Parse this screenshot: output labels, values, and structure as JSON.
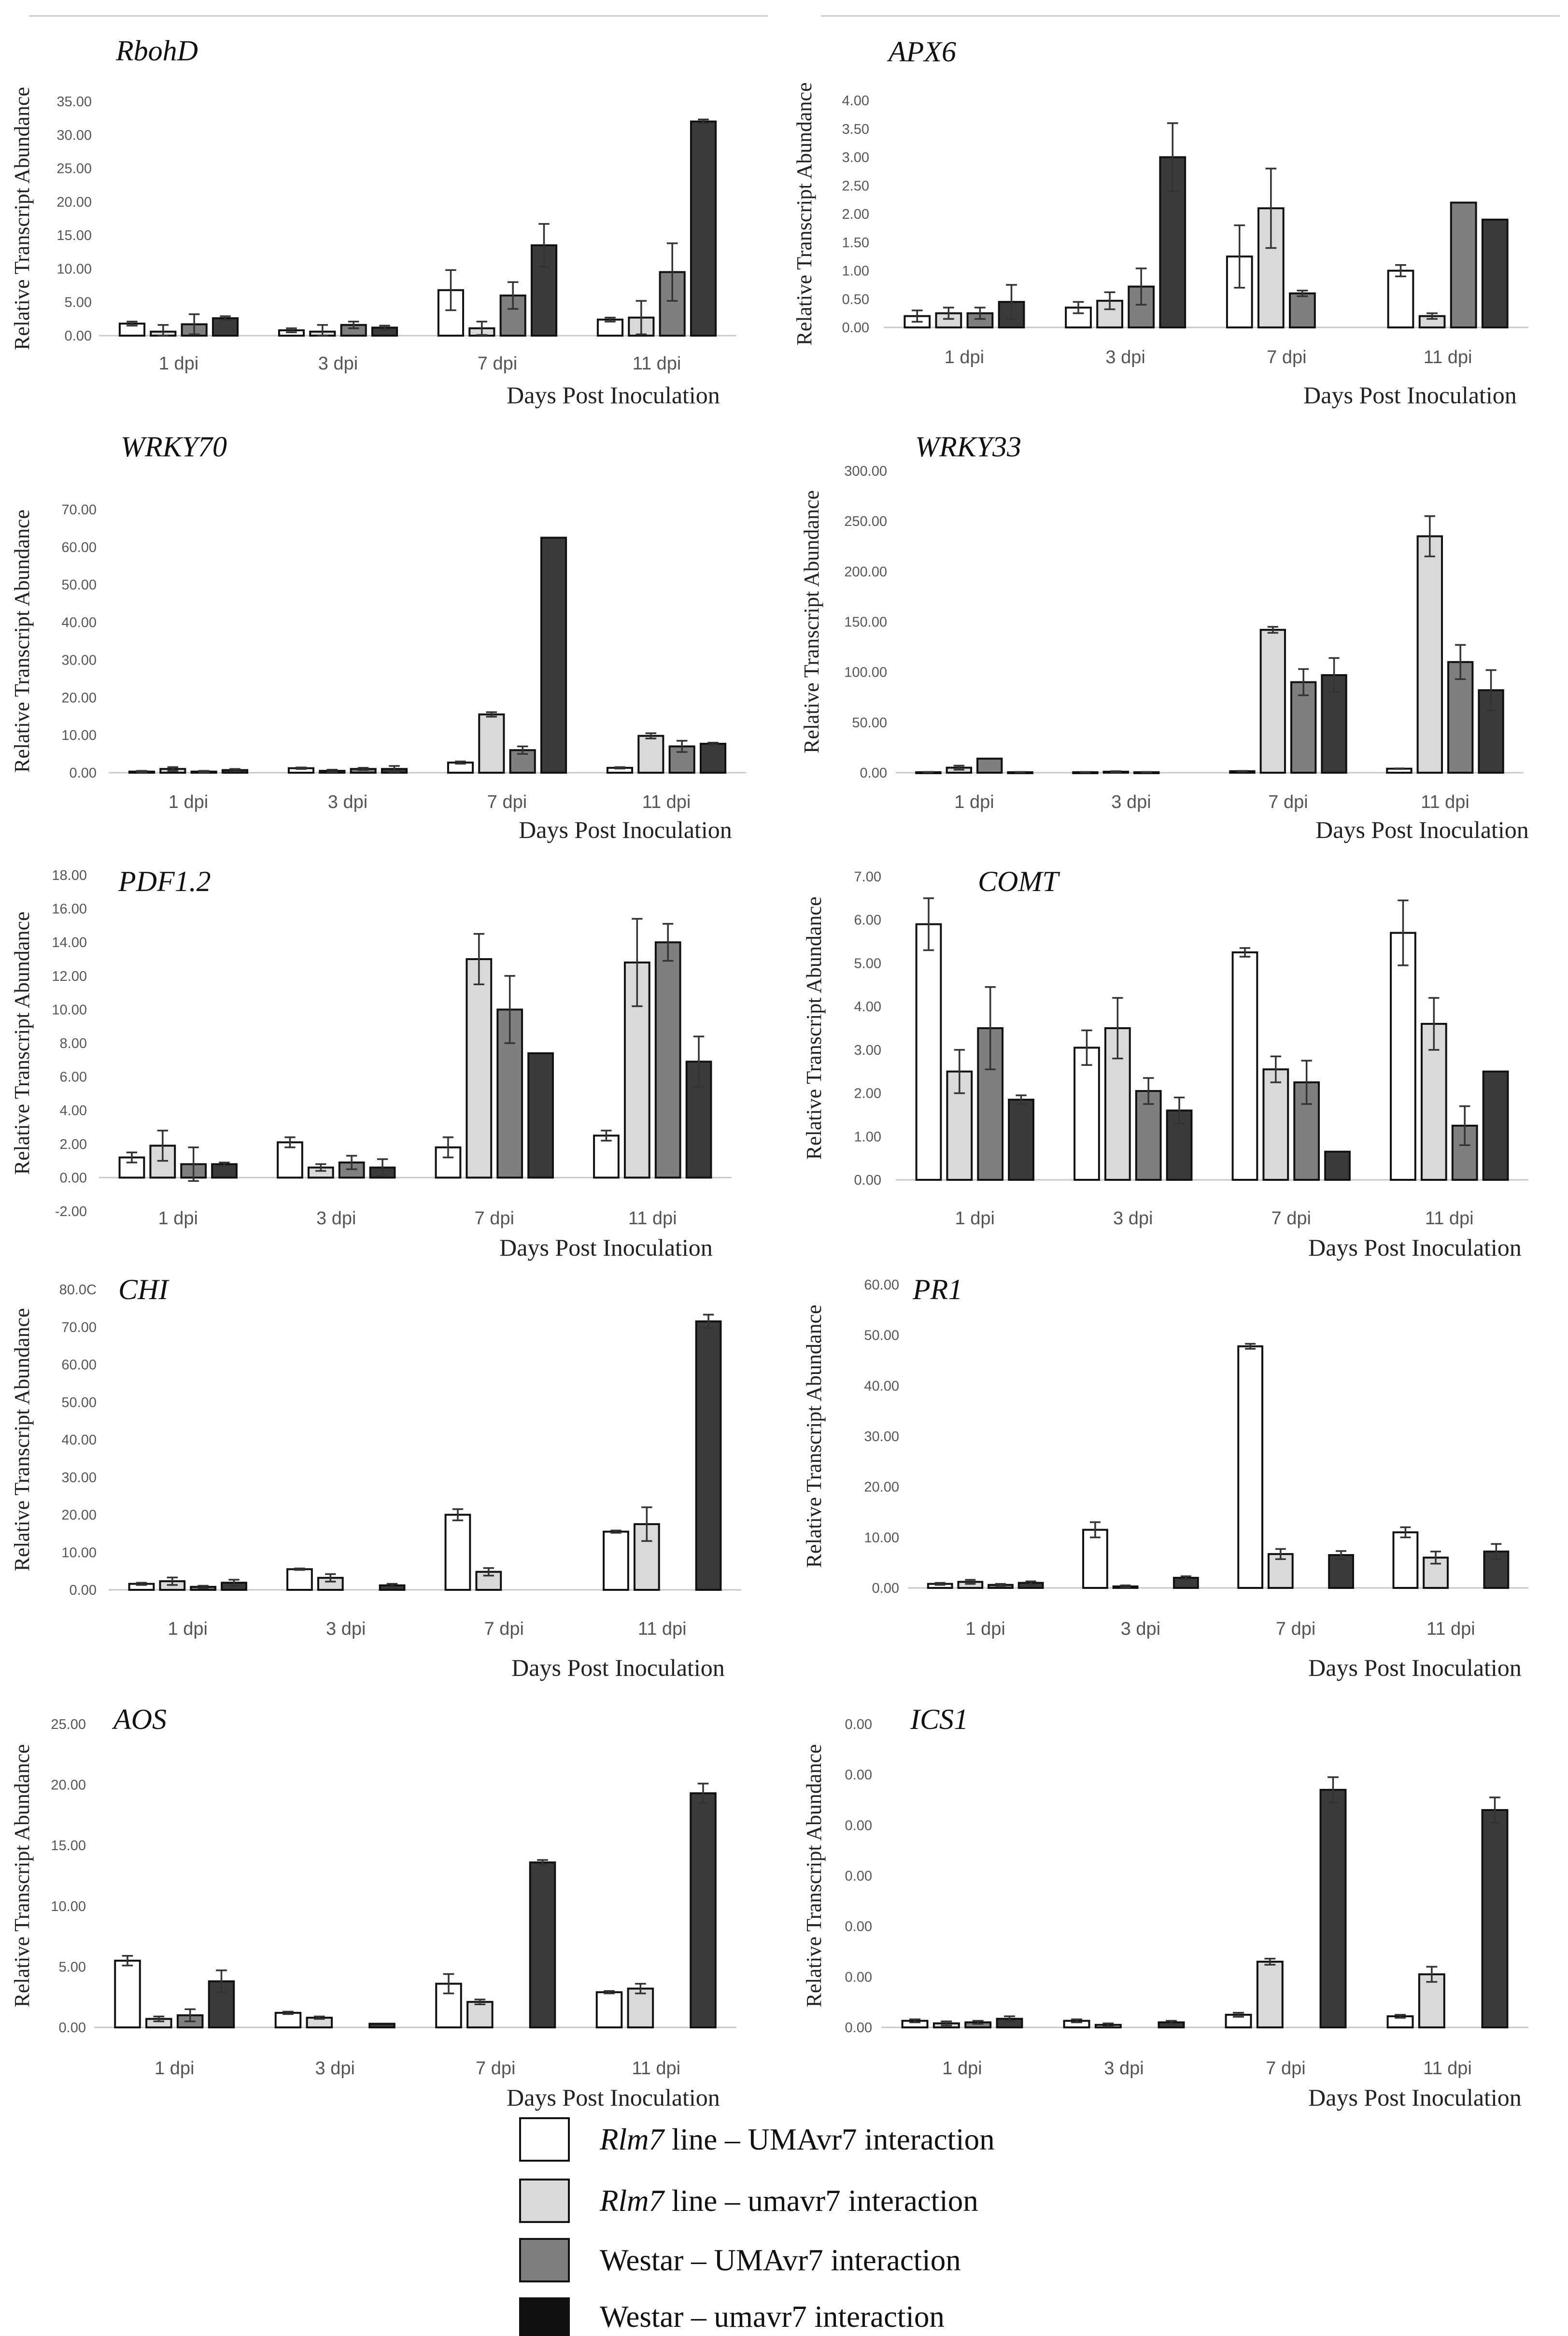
{
  "chart_data": [
    {
      "type": "bar",
      "title": "RbohD",
      "ylabel": "Relative Transcript Abundance",
      "xlabel": "Days Post Inoculation",
      "categories": [
        "1 dpi",
        "3 dpi",
        "7 dpi",
        "11 dpi"
      ],
      "yticks": [
        "0.00",
        "5.00",
        "10.00",
        "15.00",
        "20.00",
        "25.00",
        "30.00",
        "35.00"
      ],
      "ylim": [
        0,
        35
      ],
      "series": [
        {
          "name": "Rlm7 line – UMAvr7 interaction",
          "values": [
            1.8,
            0.8,
            6.8,
            2.4
          ],
          "errors": [
            0.3,
            0.3,
            3.0,
            0.3
          ]
        },
        {
          "name": "Rlm7 line – umavr7 interaction",
          "values": [
            0.6,
            0.6,
            1.1,
            2.7
          ],
          "errors": [
            1.0,
            1.0,
            1.0,
            2.5
          ]
        },
        {
          "name": "Westar – UMAvr7 interaction",
          "values": [
            1.7,
            1.6,
            6.0,
            9.5
          ],
          "errors": [
            1.5,
            0.5,
            2.0,
            4.3
          ]
        },
        {
          "name": "Westar – umavr7 interaction",
          "values": [
            2.6,
            1.2,
            13.5,
            32.0
          ],
          "errors": [
            0.3,
            0.3,
            3.2,
            0.3
          ]
        }
      ]
    },
    {
      "type": "bar",
      "title": "APX6",
      "ylabel": "Relative Transcript Abundance",
      "xlabel": "Days Post Inoculation",
      "categories": [
        "1 dpi",
        "3 dpi",
        "7 dpi",
        "11 dpi"
      ],
      "yticks": [
        "0.00",
        "0.50",
        "1.00",
        "1.50",
        "2.00",
        "2.50",
        "3.00",
        "3.50",
        "4.00"
      ],
      "ylim": [
        0,
        4
      ],
      "series": [
        {
          "name": "Rlm7 line – UMAvr7 interaction",
          "values": [
            0.2,
            0.35,
            1.25,
            1.0
          ],
          "errors": [
            0.1,
            0.1,
            0.55,
            0.1
          ]
        },
        {
          "name": "Rlm7 line – umavr7 interaction",
          "values": [
            0.25,
            0.47,
            2.1,
            0.2
          ],
          "errors": [
            0.1,
            0.15,
            0.7,
            0.05
          ]
        },
        {
          "name": "Westar – UMAvr7 interaction",
          "values": [
            0.25,
            0.72,
            0.6,
            2.2
          ],
          "errors": [
            0.1,
            0.32,
            0.05,
            0
          ]
        },
        {
          "name": "Westar – umavr7 interaction",
          "values": [
            0.45,
            3.0,
            0,
            1.9
          ],
          "errors": [
            0.3,
            0.6,
            0,
            0
          ]
        }
      ]
    },
    {
      "type": "bar",
      "title": "WRKY70",
      "ylabel": "Relative Transcript Abundance",
      "xlabel": "Days Post Inoculation",
      "categories": [
        "1 dpi",
        "3 dpi",
        "7 dpi",
        "11 dpi"
      ],
      "yticks": [
        "0.00",
        "10.00",
        "20.00",
        "30.00",
        "40.00",
        "50.00",
        "60.00",
        "70.00"
      ],
      "ylim": [
        0,
        70
      ],
      "series": [
        {
          "name": "Rlm7 line – UMAvr7 interaction",
          "values": [
            0.3,
            1.2,
            2.7,
            1.3
          ],
          "errors": [
            0.2,
            0.2,
            0.3,
            0.2
          ]
        },
        {
          "name": "Rlm7 line – umavr7 interaction",
          "values": [
            1.0,
            0.5,
            15.5,
            9.8
          ],
          "errors": [
            0.5,
            0.3,
            0.6,
            0.7
          ]
        },
        {
          "name": "Westar – UMAvr7 interaction",
          "values": [
            0.3,
            1.0,
            6.0,
            7.0
          ],
          "errors": [
            0.2,
            0.3,
            1.0,
            1.5
          ]
        },
        {
          "name": "Westar – umavr7 interaction",
          "values": [
            0.7,
            1.0,
            62.5,
            7.7
          ],
          "errors": [
            0.3,
            0.8,
            0,
            0.3
          ]
        }
      ]
    },
    {
      "type": "bar",
      "title": "WRKY33",
      "ylabel": "Relative Transcript Abundance",
      "xlabel": "Days Post Inoculation",
      "categories": [
        "1 dpi",
        "3 dpi",
        "7 dpi",
        "11 dpi"
      ],
      "yticks": [
        "0.00",
        "50.00",
        "100.00",
        "150.00",
        "200.00",
        "250.00",
        "300.00"
      ],
      "ylim": [
        0,
        300
      ],
      "series": [
        {
          "name": "Rlm7 line – UMAvr7 interaction",
          "values": [
            0.5,
            0.5,
            1.5,
            4.0
          ],
          "errors": [
            0.3,
            0.3,
            0.3,
            0.3
          ]
        },
        {
          "name": "Rlm7 line – umavr7 interaction",
          "values": [
            5.0,
            1.0,
            142.0,
            235.0
          ],
          "errors": [
            2.0,
            0.5,
            3.0,
            20.0
          ]
        },
        {
          "name": "Westar – UMAvr7 interaction",
          "values": [
            14.0,
            0.5,
            90.0,
            110.0
          ],
          "errors": [
            0,
            0.3,
            13.0,
            17.0
          ]
        },
        {
          "name": "Westar – umavr7 interaction",
          "values": [
            0.5,
            0,
            97.0,
            82.0
          ],
          "errors": [
            0.3,
            0,
            17.0,
            20.0
          ]
        }
      ]
    },
    {
      "type": "bar",
      "title": "PDF1.2",
      "ylabel": "Relative Transcript Abundance",
      "xlabel": "Days Post Inoculation",
      "categories": [
        "1 dpi",
        "3 dpi",
        "7 dpi",
        "11 dpi"
      ],
      "yticks": [
        "-2.00",
        "0.00",
        "2.00",
        "4.00",
        "6.00",
        "8.00",
        "10.00",
        "12.00",
        "14.00",
        "16.00",
        "18.00"
      ],
      "ylim": [
        -2,
        18
      ],
      "series": [
        {
          "name": "Rlm7 line – UMAvr7 interaction",
          "values": [
            1.2,
            2.1,
            1.8,
            2.5
          ],
          "errors": [
            0.3,
            0.3,
            0.6,
            0.3
          ]
        },
        {
          "name": "Rlm7 line – umavr7 interaction",
          "values": [
            1.9,
            0.6,
            13.0,
            12.8
          ],
          "errors": [
            0.9,
            0.2,
            1.5,
            2.6
          ]
        },
        {
          "name": "Westar – UMAvr7 interaction",
          "values": [
            0.8,
            0.9,
            10.0,
            14.0
          ],
          "errors": [
            1.0,
            0.4,
            2.0,
            1.1
          ]
        },
        {
          "name": "Westar – umavr7 interaction",
          "values": [
            0.8,
            0.6,
            7.4,
            6.9
          ],
          "errors": [
            0.1,
            0.5,
            0,
            1.5
          ]
        }
      ]
    },
    {
      "type": "bar",
      "title": "COMT",
      "ylabel": "Relative Transcript Abundance",
      "xlabel": "Days Post Inoculation",
      "categories": [
        "1 dpi",
        "3 dpi",
        "7 dpi",
        "11 dpi"
      ],
      "yticks": [
        "0.00",
        "1.00",
        "2.00",
        "3.00",
        "4.00",
        "5.00",
        "6.00",
        "7.00"
      ],
      "ylim": [
        0,
        7
      ],
      "series": [
        {
          "name": "Rlm7 line – UMAvr7 interaction",
          "values": [
            5.9,
            3.05,
            5.25,
            5.7
          ],
          "errors": [
            0.6,
            0.4,
            0.1,
            0.75
          ]
        },
        {
          "name": "Rlm7 line – umavr7 interaction",
          "values": [
            2.5,
            3.5,
            2.55,
            3.6
          ],
          "errors": [
            0.5,
            0.7,
            0.3,
            0.6
          ]
        },
        {
          "name": "Westar – UMAvr7 interaction",
          "values": [
            3.5,
            2.05,
            2.25,
            1.25
          ],
          "errors": [
            0.95,
            0.3,
            0.5,
            0.45
          ]
        },
        {
          "name": "Westar – umavr7 interaction",
          "values": [
            1.85,
            1.6,
            0.65,
            2.5
          ],
          "errors": [
            0.1,
            0.3,
            0,
            0
          ]
        }
      ]
    },
    {
      "type": "bar",
      "title": "CHI",
      "ylabel": "Relative Transcript Abundance",
      "xlabel": "Days Post Inoculation",
      "categories": [
        "1 dpi",
        "3 dpi",
        "7 dpi",
        "11 dpi"
      ],
      "yticks": [
        "0.00",
        "10.00",
        "20.00",
        "30.00",
        "40.00",
        "50.00",
        "60.00",
        "70.00",
        "80.0C"
      ],
      "ylim": [
        0,
        80
      ],
      "series": [
        {
          "name": "Rlm7 line – UMAvr7 interaction",
          "values": [
            1.6,
            5.5,
            20.0,
            15.5
          ],
          "errors": [
            0.3,
            0.2,
            1.5,
            0.3
          ]
        },
        {
          "name": "Rlm7 line – umavr7 interaction",
          "values": [
            2.3,
            3.2,
            4.8,
            17.5
          ],
          "errors": [
            1.0,
            1.0,
            1.0,
            4.5
          ]
        },
        {
          "name": "Westar – UMAvr7 interaction",
          "values": [
            0.8,
            0,
            0,
            0
          ],
          "errors": [
            0.3,
            0,
            0,
            0
          ]
        },
        {
          "name": "Westar – umavr7 interaction",
          "values": [
            1.9,
            1.2,
            0,
            71.5
          ],
          "errors": [
            0.8,
            0.4,
            0,
            1.8
          ]
        }
      ]
    },
    {
      "type": "bar",
      "title": "PR1",
      "ylabel": "Relative Transcript Abundance",
      "xlabel": "Days Post Inoculation",
      "categories": [
        "1 dpi",
        "3 dpi",
        "7 dpi",
        "11 dpi"
      ],
      "yticks": [
        "0.00",
        "10.00",
        "20.00",
        "30.00",
        "40.00",
        "50.00",
        "60.00"
      ],
      "ylim": [
        0,
        60
      ],
      "series": [
        {
          "name": "Rlm7 line – UMAvr7 interaction",
          "values": [
            0.8,
            11.5,
            47.8,
            11.0
          ],
          "errors": [
            0.2,
            1.5,
            0.5,
            1.0
          ]
        },
        {
          "name": "Rlm7 line – umavr7 interaction",
          "values": [
            1.2,
            0.3,
            6.7,
            6.0
          ],
          "errors": [
            0.4,
            0.2,
            1.0,
            1.2
          ]
        },
        {
          "name": "Westar – UMAvr7 interaction",
          "values": [
            0.6,
            0,
            0,
            0
          ],
          "errors": [
            0.2,
            0,
            0,
            0
          ]
        },
        {
          "name": "Westar – umavr7 interaction",
          "values": [
            1.0,
            2.0,
            6.5,
            7.2
          ],
          "errors": [
            0.3,
            0.3,
            0.8,
            1.5
          ]
        }
      ]
    },
    {
      "type": "bar",
      "title": "AOS",
      "ylabel": "Relative Transcript Abundance",
      "xlabel": "Days Post Inoculation",
      "categories": [
        "1 dpi",
        "3 dpi",
        "7 dpi",
        "11 dpi"
      ],
      "yticks": [
        "0.00",
        "5.00",
        "10.00",
        "15.00",
        "20.00",
        "25.00"
      ],
      "ylim": [
        0,
        25
      ],
      "series": [
        {
          "name": "Rlm7 line – UMAvr7 interaction",
          "values": [
            5.5,
            1.2,
            3.6,
            2.9
          ],
          "errors": [
            0.4,
            0.1,
            0.8,
            0.1
          ]
        },
        {
          "name": "Rlm7 line – umavr7 interaction",
          "values": [
            0.7,
            0.8,
            2.1,
            3.2
          ],
          "errors": [
            0.2,
            0.1,
            0.2,
            0.4
          ]
        },
        {
          "name": "Westar – UMAvr7 interaction",
          "values": [
            1.0,
            0,
            0,
            0
          ],
          "errors": [
            0.5,
            0,
            0,
            0
          ]
        },
        {
          "name": "Westar – umavr7 interaction",
          "values": [
            3.8,
            0.3,
            13.6,
            19.3
          ],
          "errors": [
            0.9,
            0,
            0.2,
            0.8
          ]
        }
      ]
    },
    {
      "type": "bar",
      "title": "ICS1",
      "ylabel": "Relative Transcript Abundance",
      "xlabel": "Days Post Inoculation",
      "categories": [
        "1 dpi",
        "3 dpi",
        "7 dpi",
        "11 dpi"
      ],
      "yticks": [
        "0.00",
        "0.00",
        "0.00",
        "0.00",
        "0.00",
        "0.00",
        "0.00"
      ],
      "ylim": [
        0,
        6
      ],
      "series": [
        {
          "name": "Rlm7 line – UMAvr7 interaction",
          "values": [
            0.13,
            0.13,
            0.25,
            0.22
          ],
          "errors": [
            0.03,
            0.03,
            0.04,
            0.03
          ]
        },
        {
          "name": "Rlm7 line – umavr7 interaction",
          "values": [
            0.08,
            0.05,
            1.3,
            1.05
          ],
          "errors": [
            0.04,
            0.03,
            0.06,
            0.15
          ]
        },
        {
          "name": "Westar – UMAvr7 interaction",
          "values": [
            0.1,
            0,
            0,
            0
          ],
          "errors": [
            0.03,
            0,
            0,
            0
          ]
        },
        {
          "name": "Westar – umavr7 interaction",
          "values": [
            0.17,
            0.1,
            4.7,
            4.3
          ],
          "errors": [
            0.05,
            0.03,
            0.25,
            0.25
          ]
        }
      ]
    }
  ],
  "legend": [
    {
      "italic": "Rlm7",
      "text": " line – UMAvr7 interaction",
      "color": "#ffffff"
    },
    {
      "italic": "Rlm7",
      "text": " line – umavr7 interaction",
      "color": "#d9d9d9"
    },
    {
      "italic": "",
      "text": "Westar – UMAvr7 interaction",
      "color": "#7f7f7f"
    },
    {
      "italic": "",
      "text": "Westar – umavr7 interaction",
      "color": "#111111"
    }
  ],
  "series_colors": [
    "#ffffff",
    "#d9d9d9",
    "#7f7f7f",
    "#3b3b3b"
  ],
  "series_stroke": "#111111"
}
